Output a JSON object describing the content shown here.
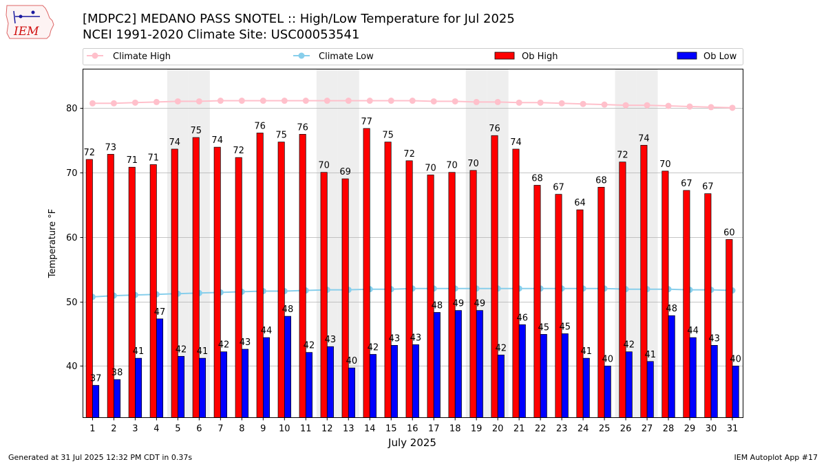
{
  "header": {
    "title_line1": "[MDPC2] MEDANO PASS SNOTEL :: High/Low Temperature for Jul 2025",
    "title_line2": "NCEI 1991-2020 Climate Site: USC00053541"
  },
  "logo": {
    "text": "IEM"
  },
  "footer": {
    "generated": "Generated at 31 Jul 2025 12:32 PM CDT in 0.37s",
    "app": "IEM Autoplot App #17"
  },
  "colors": {
    "ob_high": "#ff0000",
    "ob_low": "#0000ff",
    "climate_high": "#ffc0cb",
    "climate_low": "#87ceeb",
    "weekend_shade": "#eeeeee",
    "grid": "#b0b0b0"
  },
  "chart_data": {
    "type": "bar",
    "xlabel": "July 2025",
    "ylabel": "Temperature °F",
    "ylim": [
      32,
      86
    ],
    "yticks": [
      40,
      50,
      60,
      70,
      80
    ],
    "grid": "horizontal",
    "legend_position": "top",
    "categories": [
      "1",
      "2",
      "3",
      "4",
      "5",
      "6",
      "7",
      "8",
      "9",
      "10",
      "11",
      "12",
      "13",
      "14",
      "15",
      "16",
      "17",
      "18",
      "19",
      "20",
      "21",
      "22",
      "23",
      "24",
      "25",
      "26",
      "27",
      "28",
      "29",
      "30",
      "31"
    ],
    "shaded_days": [
      5,
      6,
      12,
      13,
      19,
      20,
      26,
      27
    ],
    "series": [
      {
        "name": "Climate High",
        "kind": "line",
        "values": [
          80.7,
          80.7,
          80.8,
          80.9,
          81.0,
          81.0,
          81.1,
          81.1,
          81.1,
          81.1,
          81.1,
          81.1,
          81.1,
          81.1,
          81.1,
          81.1,
          81.0,
          81.0,
          80.9,
          80.9,
          80.8,
          80.8,
          80.7,
          80.6,
          80.5,
          80.4,
          80.4,
          80.3,
          80.2,
          80.1,
          80.0
        ]
      },
      {
        "name": "Climate Low",
        "kind": "line",
        "values": [
          50.7,
          50.9,
          51.0,
          51.1,
          51.2,
          51.3,
          51.4,
          51.5,
          51.6,
          51.6,
          51.7,
          51.8,
          51.8,
          51.9,
          51.9,
          52.0,
          52.0,
          52.0,
          52.0,
          52.0,
          52.0,
          52.0,
          52.0,
          52.0,
          52.0,
          51.9,
          51.9,
          51.9,
          51.8,
          51.8,
          51.7
        ]
      },
      {
        "name": "Ob High",
        "kind": "bar",
        "values": [
          72,
          72.8,
          70.8,
          71.2,
          73.6,
          75.4,
          73.9,
          72.3,
          76.1,
          74.7,
          75.9,
          70,
          69,
          76.8,
          74.7,
          71.8,
          69.6,
          70,
          70.3,
          75.7,
          73.6,
          68,
          66.6,
          64.2,
          67.7,
          71.6,
          74.2,
          70.2,
          67.2,
          66.7,
          59.6
        ],
        "labels": [
          "72",
          "73",
          "71",
          "71",
          "74",
          "75",
          "74",
          "72",
          "76",
          "75",
          "76",
          "70",
          "69",
          "77",
          "75",
          "72",
          "70",
          "70",
          "70",
          "76",
          "74",
          "68",
          "67",
          "64",
          "68",
          "72",
          "74",
          "70",
          "67",
          "67",
          "60"
        ]
      },
      {
        "name": "Ob Low",
        "kind": "bar",
        "values": [
          37,
          37.9,
          41.2,
          47.3,
          41.5,
          41.2,
          42.2,
          42.6,
          44.4,
          47.7,
          42.1,
          43,
          39.7,
          41.8,
          43.2,
          43.3,
          48.3,
          48.6,
          48.6,
          41.7,
          46.4,
          44.9,
          45,
          41.2,
          40,
          42.2,
          40.7,
          47.8,
          44.4,
          43.2,
          40
        ],
        "labels": [
          "37",
          "38",
          "41",
          "47",
          "42",
          "41",
          "42",
          "43",
          "44",
          "48",
          "42",
          "43",
          "40",
          "42",
          "43",
          "43",
          "48",
          "49",
          "49",
          "42",
          "46",
          "45",
          "45",
          "41",
          "40",
          "42",
          "41",
          "48",
          "44",
          "43",
          "40"
        ]
      }
    ]
  }
}
